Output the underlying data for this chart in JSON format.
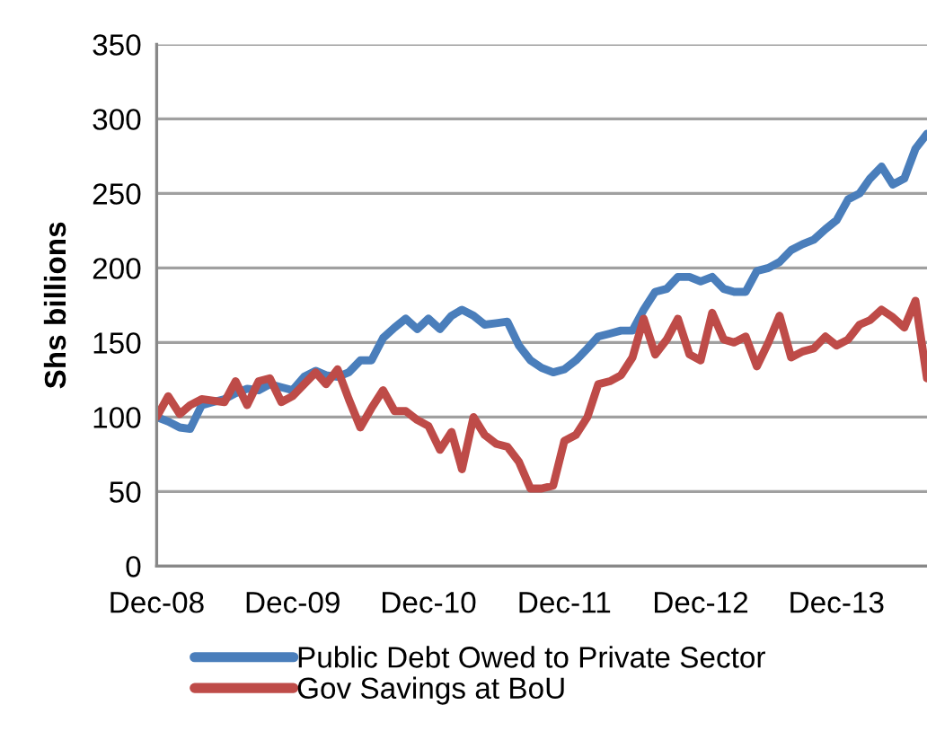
{
  "chart_data": {
    "type": "line",
    "ylabel": "Shs billions",
    "x": [
      "2008-12",
      "2009-01",
      "2009-02",
      "2009-03",
      "2009-04",
      "2009-05",
      "2009-06",
      "2009-07",
      "2009-08",
      "2009-09",
      "2009-10",
      "2009-11",
      "2009-12",
      "2010-01",
      "2010-02",
      "2010-03",
      "2010-04",
      "2010-05",
      "2010-06",
      "2010-07",
      "2010-08",
      "2010-09",
      "2010-10",
      "2010-11",
      "2010-12",
      "2011-01",
      "2011-02",
      "2011-03",
      "2011-04",
      "2011-05",
      "2011-06",
      "2011-07",
      "2011-08",
      "2011-09",
      "2011-10",
      "2011-11",
      "2011-12",
      "2012-01",
      "2012-02",
      "2012-03",
      "2012-04",
      "2012-05",
      "2012-06",
      "2012-07",
      "2012-08",
      "2012-09",
      "2012-10",
      "2012-11",
      "2012-12",
      "2013-01",
      "2013-02",
      "2013-03",
      "2013-04",
      "2013-05",
      "2013-06",
      "2013-07",
      "2013-08",
      "2013-09",
      "2013-10",
      "2013-11",
      "2013-12",
      "2014-01",
      "2014-02",
      "2014-03",
      "2014-04",
      "2014-05",
      "2014-06",
      "2014-07",
      "2014-08"
    ],
    "series": [
      {
        "name": "Public Debt Owed to Private Sector",
        "color": "#4a7ebb",
        "values": [
          100,
          97,
          93,
          92,
          108,
          110,
          112,
          116,
          119,
          118,
          122,
          120,
          118,
          127,
          131,
          128,
          127,
          130,
          138,
          138,
          153,
          160,
          166,
          159,
          166,
          159,
          168,
          172,
          168,
          162,
          163,
          164,
          148,
          138,
          133,
          130,
          132,
          138,
          146,
          154,
          156,
          158,
          158,
          172,
          184,
          186,
          194,
          194,
          191,
          194,
          186,
          184,
          184,
          198,
          200,
          204,
          212,
          216,
          219,
          226,
          232,
          246,
          250,
          260,
          268,
          256,
          260,
          280,
          290
        ]
      },
      {
        "name": "Gov Savings at BoU",
        "color": "#be4b48",
        "values": [
          100,
          114,
          102,
          108,
          112,
          111,
          110,
          124,
          108,
          124,
          126,
          110,
          114,
          122,
          130,
          122,
          132,
          112,
          93,
          106,
          118,
          104,
          104,
          98,
          94,
          78,
          90,
          65,
          100,
          88,
          82,
          80,
          70,
          52,
          52,
          54,
          84,
          88,
          100,
          122,
          124,
          128,
          140,
          166,
          142,
          152,
          166,
          142,
          138,
          170,
          152,
          150,
          154,
          134,
          150,
          168,
          140,
          144,
          146,
          154,
          148,
          152,
          162,
          165,
          172,
          167,
          160,
          178,
          126
        ]
      }
    ],
    "xlim": [
      "2008-12",
      "2014-08"
    ],
    "xticks": [
      {
        "value": "2008-12",
        "label": "Dec-08"
      },
      {
        "value": "2009-12",
        "label": "Dec-09"
      },
      {
        "value": "2010-12",
        "label": "Dec-10"
      },
      {
        "value": "2011-12",
        "label": "Dec-11"
      },
      {
        "value": "2012-12",
        "label": "Dec-12"
      },
      {
        "value": "2013-12",
        "label": "Dec-13"
      }
    ],
    "ylim": [
      0,
      350
    ],
    "yticks": [
      0,
      50,
      100,
      150,
      200,
      250,
      300,
      350
    ],
    "grid": "y",
    "legend": "bottom",
    "marker": "none",
    "line_style": "solid"
  }
}
